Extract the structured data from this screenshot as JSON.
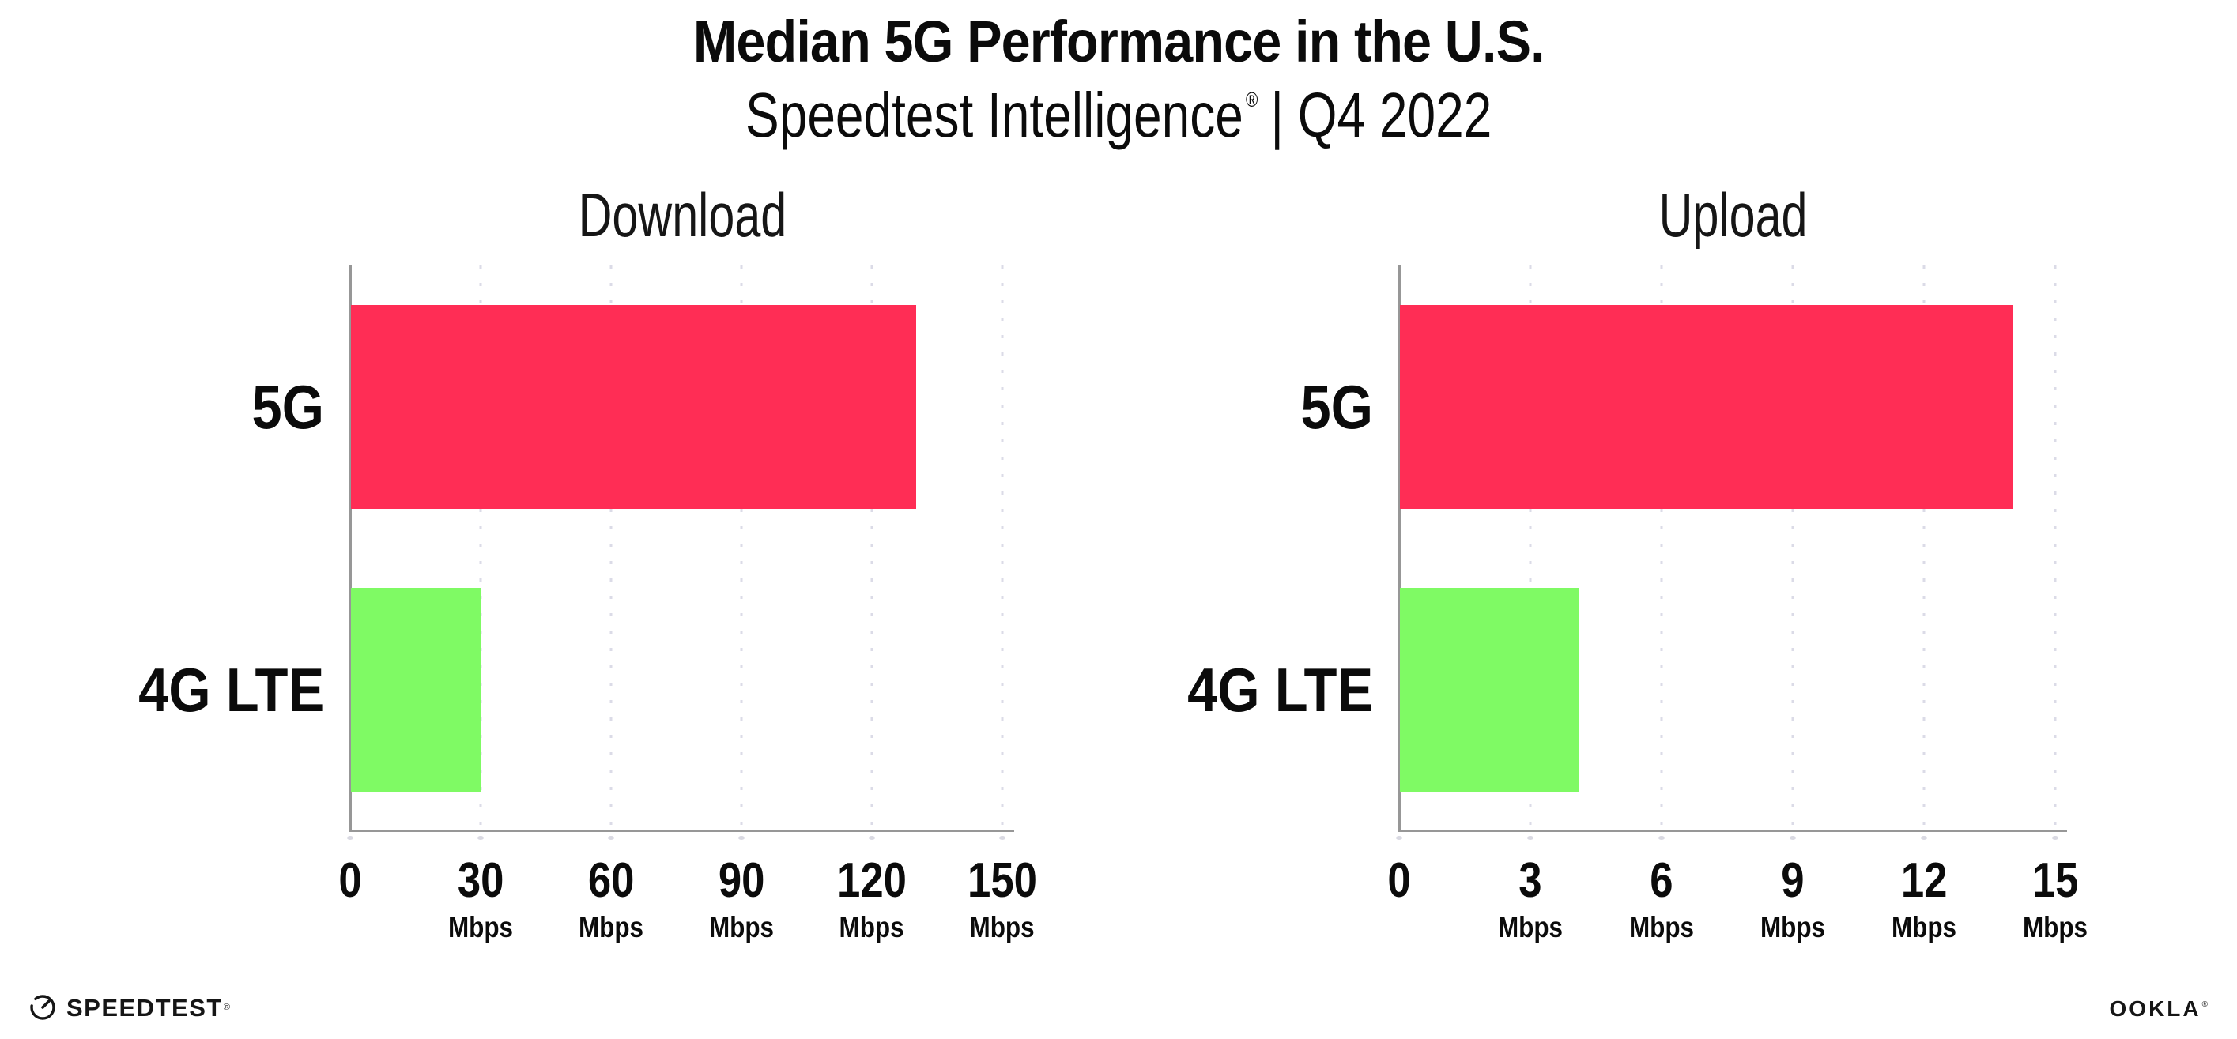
{
  "header": {
    "title": "Median 5G Performance in the U.S.",
    "subtitle_brand": "Speedtest Intelligence",
    "subtitle_reg": "®",
    "subtitle_rest": "| Q4 2022"
  },
  "chart_data": [
    {
      "type": "bar",
      "orientation": "horizontal",
      "title": "Download",
      "categories": [
        "5G",
        "4G LTE"
      ],
      "values": [
        130,
        30
      ],
      "unit": "Mbps",
      "xlabel": "",
      "ylabel": "",
      "xlim": [
        0,
        153
      ],
      "ticks": [
        0,
        30,
        60,
        90,
        120,
        150
      ],
      "colors": [
        "#FF2D55",
        "#7FFA64"
      ],
      "grid": "dotted-vertical",
      "legend": "none"
    },
    {
      "type": "bar",
      "orientation": "horizontal",
      "title": "Upload",
      "categories": [
        "5G",
        "4G LTE"
      ],
      "values": [
        14,
        4.1
      ],
      "unit": "Mbps",
      "xlabel": "",
      "ylabel": "",
      "xlim": [
        0,
        15.3
      ],
      "ticks": [
        0,
        3,
        6,
        9,
        12,
        15
      ],
      "colors": [
        "#FF2D55",
        "#7FFA64"
      ],
      "grid": "dotted-vertical",
      "legend": "none"
    }
  ],
  "footer": {
    "speedtest_label": "SPEEDTEST",
    "speedtest_reg": "®",
    "ookla_label": "OOKLA",
    "ookla_reg": "®"
  },
  "colors": {
    "bar_5g": "#FF2D55",
    "bar_4g_lte": "#7FFA64",
    "axis": "#979797",
    "gridline": "#DBDBE7",
    "text": "#0B0B0B",
    "background": "#FFFFFF"
  }
}
